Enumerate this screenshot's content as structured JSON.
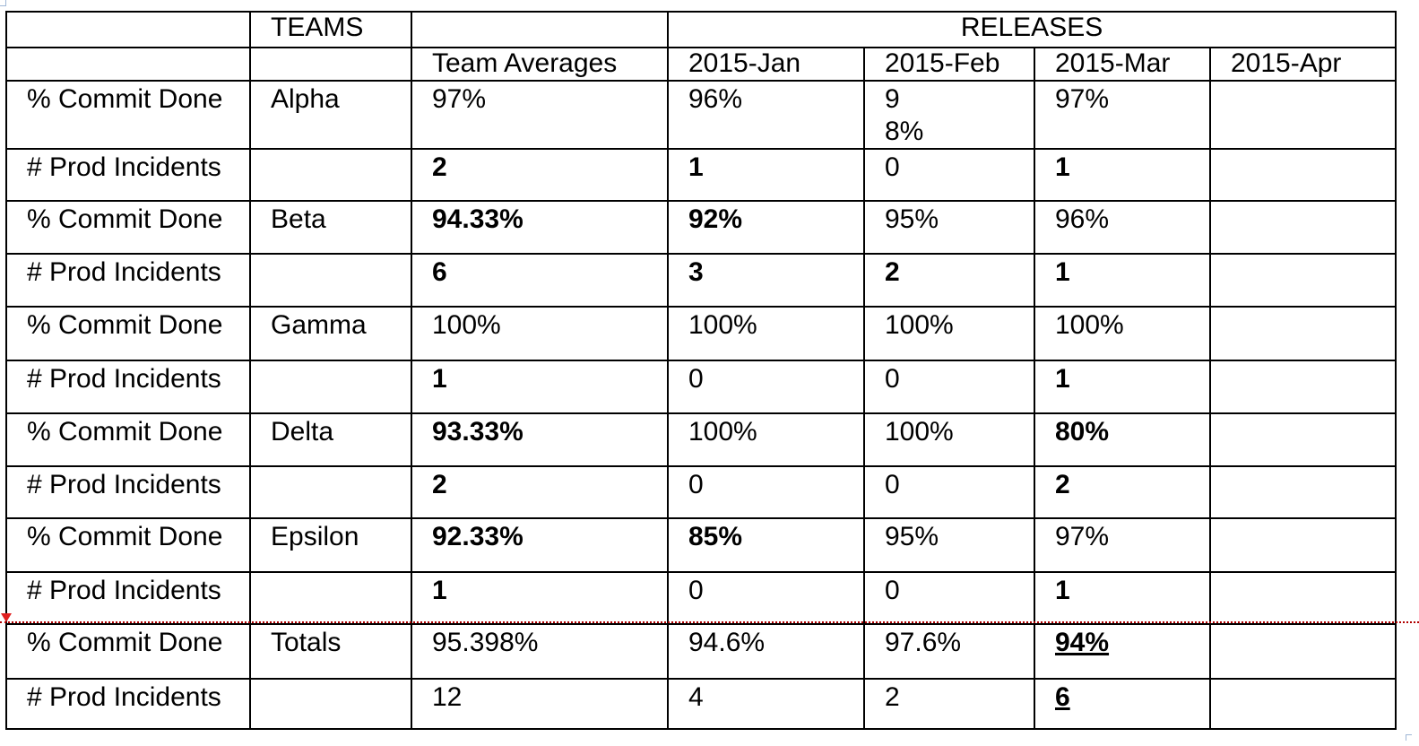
{
  "table": {
    "header_row1": {
      "label": "",
      "teams": "TEAMS",
      "blank": "",
      "releases": "RELEASES"
    },
    "header_row2": [
      "",
      "",
      "Team Averages",
      "2015-Jan",
      "2015-Feb",
      "2015-Mar",
      "2015-Apr"
    ],
    "rows": [
      {
        "metric": "% Commit Done",
        "team": "Alpha",
        "avg": "97%",
        "jan": "96%",
        "feb": "98%",
        "mar": "97%",
        "apr": ""
      },
      {
        "metric": "# Prod Incidents",
        "team": "",
        "avg": "2",
        "jan": "1",
        "feb": "0",
        "mar": "1",
        "apr": ""
      },
      {
        "metric": "% Commit Done",
        "team": "Beta",
        "avg": "94.33%",
        "jan": "92%",
        "feb": "95%",
        "mar": "96%",
        "apr": ""
      },
      {
        "metric": "# Prod Incidents",
        "team": "",
        "avg": "6",
        "jan": "3",
        "feb": "2",
        "mar": "1",
        "apr": ""
      },
      {
        "metric": "% Commit Done",
        "team": "Gamma",
        "avg": "100%",
        "jan": "100%",
        "feb": "100%",
        "mar": "100%",
        "apr": ""
      },
      {
        "metric": "# Prod Incidents",
        "team": "",
        "avg": "1",
        "jan": "0",
        "feb": "0",
        "mar": "1",
        "apr": ""
      },
      {
        "metric": "% Commit Done",
        "team": "Delta",
        "avg": "93.33%",
        "jan": "100%",
        "feb": "100%",
        "mar": "80%",
        "apr": ""
      },
      {
        "metric": "# Prod Incidents",
        "team": "",
        "avg": "2",
        "jan": "0",
        "feb": "0",
        "mar": "2",
        "apr": ""
      },
      {
        "metric": "% Commit Done",
        "team": "Epsilon",
        "avg": "92.33%",
        "jan": "85%",
        "feb": "95%",
        "mar": "97%",
        "apr": ""
      },
      {
        "metric": "# Prod Incidents",
        "team": "",
        "avg": "1",
        "jan": "0",
        "feb": "0",
        "mar": "1",
        "apr": ""
      },
      {
        "metric": "% Commit Done",
        "team": "Totals",
        "avg": "95.398%",
        "jan": "94.6%",
        "feb": "97.6%",
        "mar": "94%",
        "apr": ""
      },
      {
        "metric": "# Prod Incidents",
        "team": "",
        "avg": "12",
        "jan": "4",
        "feb": "2",
        "mar": "6",
        "apr": ""
      }
    ]
  },
  "colors": {
    "highlight": "#ff0000",
    "tracked_change": "#e8746e",
    "border": "#000000"
  }
}
